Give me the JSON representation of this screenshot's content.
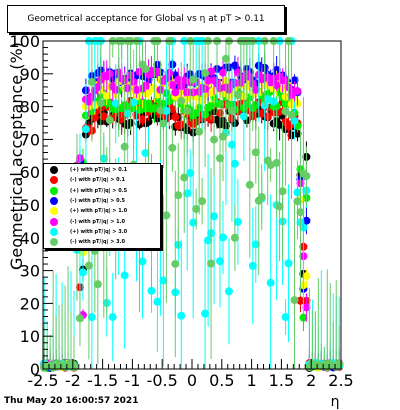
{
  "title": "Geometrical acceptance for Global vs   η at pT > 0.11",
  "timestamp": "Thu May 20 16:00:57 2021",
  "chart_data": {
    "type": "scatter",
    "xlabel": "η",
    "ylabel": "Geometrical acceptance (%)",
    "xlim": [
      -2.5,
      2.5
    ],
    "ylim": [
      0,
      100
    ],
    "x_ticks": [
      "-2.5",
      "-2",
      "-1.5",
      "-1",
      "-0.5",
      "0",
      "0.5",
      "1",
      "1.5",
      "2",
      "2.5"
    ],
    "y_ticks": [
      "0",
      "10",
      "20",
      "30",
      "40",
      "50",
      "60",
      "70",
      "80",
      "90",
      "100"
    ],
    "legend_position": "left-middle",
    "series": [
      {
        "name": "(+) with pT/|q| > 0.1",
        "color": "#000000",
        "plateau": 77
      },
      {
        "name": "(-) with pT/|q| > 0.1",
        "color": "#ff0000",
        "plateau": 79
      },
      {
        "name": "(+) with pT/|q| > 0.5",
        "color": "#00ee00",
        "plateau": 82
      },
      {
        "name": "(-) with pT/|q| > 0.5",
        "color": "#0000ff",
        "plateau": 90
      },
      {
        "name": "(+) with pT/|q| > 1.0",
        "color": "#ffff00",
        "plateau": 86
      },
      {
        "name": "(-) with pT/|q| > 1.0",
        "color": "#ff00ff",
        "plateau": 88
      },
      {
        "name": "(+) with pT/|q| > 3.0",
        "color": "#00ffff",
        "plateau": 50
      },
      {
        "name": "(-) with pT/|q| > 3.0",
        "color": "#66cc66",
        "plateau": 60
      }
    ]
  }
}
